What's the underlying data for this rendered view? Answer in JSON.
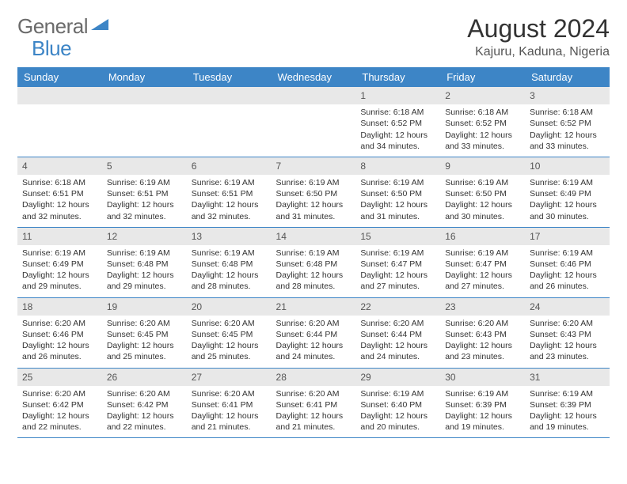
{
  "logo": {
    "text_gray": "General",
    "text_blue": "Blue"
  },
  "title": "August 2024",
  "location": "Kajuru, Kaduna, Nigeria",
  "colors": {
    "header_bg": "#3d85c6",
    "header_text": "#ffffff",
    "daynum_bg": "#e8e8e8",
    "row_border": "#3d85c6",
    "body_text": "#333333"
  },
  "day_headers": [
    "Sunday",
    "Monday",
    "Tuesday",
    "Wednesday",
    "Thursday",
    "Friday",
    "Saturday"
  ],
  "weeks": [
    [
      {
        "n": "",
        "sr": "",
        "ss": "",
        "dl": ""
      },
      {
        "n": "",
        "sr": "",
        "ss": "",
        "dl": ""
      },
      {
        "n": "",
        "sr": "",
        "ss": "",
        "dl": ""
      },
      {
        "n": "",
        "sr": "",
        "ss": "",
        "dl": ""
      },
      {
        "n": "1",
        "sr": "6:18 AM",
        "ss": "6:52 PM",
        "dl": "12 hours and 34 minutes."
      },
      {
        "n": "2",
        "sr": "6:18 AM",
        "ss": "6:52 PM",
        "dl": "12 hours and 33 minutes."
      },
      {
        "n": "3",
        "sr": "6:18 AM",
        "ss": "6:52 PM",
        "dl": "12 hours and 33 minutes."
      }
    ],
    [
      {
        "n": "4",
        "sr": "6:18 AM",
        "ss": "6:51 PM",
        "dl": "12 hours and 32 minutes."
      },
      {
        "n": "5",
        "sr": "6:19 AM",
        "ss": "6:51 PM",
        "dl": "12 hours and 32 minutes."
      },
      {
        "n": "6",
        "sr": "6:19 AM",
        "ss": "6:51 PM",
        "dl": "12 hours and 32 minutes."
      },
      {
        "n": "7",
        "sr": "6:19 AM",
        "ss": "6:50 PM",
        "dl": "12 hours and 31 minutes."
      },
      {
        "n": "8",
        "sr": "6:19 AM",
        "ss": "6:50 PM",
        "dl": "12 hours and 31 minutes."
      },
      {
        "n": "9",
        "sr": "6:19 AM",
        "ss": "6:50 PM",
        "dl": "12 hours and 30 minutes."
      },
      {
        "n": "10",
        "sr": "6:19 AM",
        "ss": "6:49 PM",
        "dl": "12 hours and 30 minutes."
      }
    ],
    [
      {
        "n": "11",
        "sr": "6:19 AM",
        "ss": "6:49 PM",
        "dl": "12 hours and 29 minutes."
      },
      {
        "n": "12",
        "sr": "6:19 AM",
        "ss": "6:48 PM",
        "dl": "12 hours and 29 minutes."
      },
      {
        "n": "13",
        "sr": "6:19 AM",
        "ss": "6:48 PM",
        "dl": "12 hours and 28 minutes."
      },
      {
        "n": "14",
        "sr": "6:19 AM",
        "ss": "6:48 PM",
        "dl": "12 hours and 28 minutes."
      },
      {
        "n": "15",
        "sr": "6:19 AM",
        "ss": "6:47 PM",
        "dl": "12 hours and 27 minutes."
      },
      {
        "n": "16",
        "sr": "6:19 AM",
        "ss": "6:47 PM",
        "dl": "12 hours and 27 minutes."
      },
      {
        "n": "17",
        "sr": "6:19 AM",
        "ss": "6:46 PM",
        "dl": "12 hours and 26 minutes."
      }
    ],
    [
      {
        "n": "18",
        "sr": "6:20 AM",
        "ss": "6:46 PM",
        "dl": "12 hours and 26 minutes."
      },
      {
        "n": "19",
        "sr": "6:20 AM",
        "ss": "6:45 PM",
        "dl": "12 hours and 25 minutes."
      },
      {
        "n": "20",
        "sr": "6:20 AM",
        "ss": "6:45 PM",
        "dl": "12 hours and 25 minutes."
      },
      {
        "n": "21",
        "sr": "6:20 AM",
        "ss": "6:44 PM",
        "dl": "12 hours and 24 minutes."
      },
      {
        "n": "22",
        "sr": "6:20 AM",
        "ss": "6:44 PM",
        "dl": "12 hours and 24 minutes."
      },
      {
        "n": "23",
        "sr": "6:20 AM",
        "ss": "6:43 PM",
        "dl": "12 hours and 23 minutes."
      },
      {
        "n": "24",
        "sr": "6:20 AM",
        "ss": "6:43 PM",
        "dl": "12 hours and 23 minutes."
      }
    ],
    [
      {
        "n": "25",
        "sr": "6:20 AM",
        "ss": "6:42 PM",
        "dl": "12 hours and 22 minutes."
      },
      {
        "n": "26",
        "sr": "6:20 AM",
        "ss": "6:42 PM",
        "dl": "12 hours and 22 minutes."
      },
      {
        "n": "27",
        "sr": "6:20 AM",
        "ss": "6:41 PM",
        "dl": "12 hours and 21 minutes."
      },
      {
        "n": "28",
        "sr": "6:20 AM",
        "ss": "6:41 PM",
        "dl": "12 hours and 21 minutes."
      },
      {
        "n": "29",
        "sr": "6:19 AM",
        "ss": "6:40 PM",
        "dl": "12 hours and 20 minutes."
      },
      {
        "n": "30",
        "sr": "6:19 AM",
        "ss": "6:39 PM",
        "dl": "12 hours and 19 minutes."
      },
      {
        "n": "31",
        "sr": "6:19 AM",
        "ss": "6:39 PM",
        "dl": "12 hours and 19 minutes."
      }
    ]
  ],
  "labels": {
    "sunrise": "Sunrise: ",
    "sunset": "Sunset: ",
    "daylight": "Daylight: "
  }
}
